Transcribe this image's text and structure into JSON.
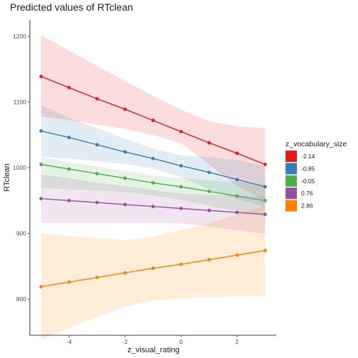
{
  "chart_data": {
    "type": "line",
    "title": "Predicted values of RTclean",
    "xlabel": "z_visual_rating",
    "ylabel": "RTclean",
    "xlim": [
      -5.4,
      3.4
    ],
    "ylim": [
      745,
      1225
    ],
    "x_ticks": [
      -4,
      -2,
      0,
      2
    ],
    "x_tick_labels": [
      "-4",
      "-2",
      "0",
      "2"
    ],
    "y_ticks": [
      800,
      900,
      1000,
      1100,
      1200
    ],
    "y_tick_labels": [
      "800",
      "900",
      "1000",
      "1100",
      "1200"
    ],
    "grid": false,
    "legend": {
      "title": "z_vocabulary_size",
      "position": "right"
    },
    "x": [
      -5,
      -4,
      -3,
      -2,
      -1,
      0,
      1,
      2,
      3
    ],
    "series": [
      {
        "name": "-2.14",
        "color": "#e41a1c",
        "values": [
          1139,
          1122,
          1105,
          1089,
          1072,
          1055,
          1038,
          1022,
          1005
        ],
        "ci_lower": [
          1078,
          1072,
          1066,
          1059,
          1050,
          1037,
          1005,
          972,
          950
        ],
        "ci_upper": [
          1202,
          1178,
          1155,
          1132,
          1109,
          1088,
          1071,
          1063,
          1060
        ]
      },
      {
        "name": "-0.85",
        "color": "#377eb8",
        "values": [
          1056,
          1046,
          1035,
          1024,
          1014,
          1003,
          993,
          982,
          971
        ],
        "ci_lower": [
          1017,
          1014,
          1010,
          1006,
          999,
          986,
          967,
          952,
          941
        ],
        "ci_upper": [
          1095,
          1076,
          1060,
          1044,
          1029,
          1019,
          1016,
          1012,
          1002
        ]
      },
      {
        "name": "-0.05",
        "color": "#4daf4a",
        "values": [
          1005,
          998,
          991,
          984,
          977,
          971,
          964,
          957,
          950
        ],
        "ci_lower": [
          969,
          967,
          965,
          963,
          958,
          951,
          942,
          934,
          926
        ],
        "ci_upper": [
          1016,
          1008,
          1002,
          995,
          988,
          984,
          981,
          978,
          975
        ]
      },
      {
        "name": "0.76",
        "color": "#984ea3",
        "values": [
          953,
          950,
          947,
          944,
          941,
          938,
          935,
          932,
          929
        ],
        "ci_lower": [
          916,
          916,
          916,
          916,
          916,
          915,
          911,
          905,
          899
        ],
        "ci_upper": [
          990,
          984,
          977,
          972,
          966,
          961,
          959,
          957,
          957
        ]
      },
      {
        "name": "2.86",
        "color": "#ff7f00",
        "values": [
          819,
          826,
          833,
          840,
          847,
          853,
          860,
          867,
          874
        ],
        "ci_lower": [
          738,
          756,
          773,
          789,
          798,
          801,
          803,
          804,
          805
        ],
        "ci_upper": [
          900,
          896,
          893,
          890,
          895,
          905,
          916,
          929,
          942
        ]
      }
    ]
  }
}
